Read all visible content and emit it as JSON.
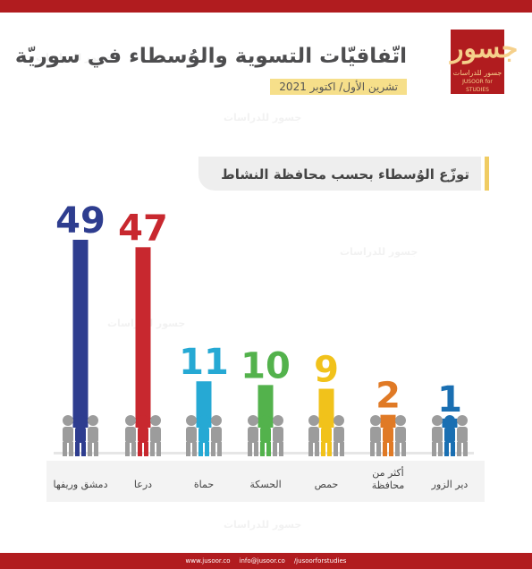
{
  "title": "اتّفاقيّات التسوية والوُسطاء في سوريّة",
  "date": "تشرين الأول/ اكتوبر 2021",
  "logo": {
    "mark": "جسور",
    "name_ar": "جسور للدراسات",
    "name_en": "JUSOOR for STUDIES"
  },
  "footer": {
    "website": "www.jusoor.co",
    "email": "info@jusoor.co",
    "social": "/jusoorforstudies"
  },
  "colors": {
    "brand": "#b11c1f",
    "gold": "#f0cc63",
    "badge": "#f6df8a"
  },
  "chart_data": {
    "type": "bar",
    "title": "توزّع الوُسطاء بحسب محافظة النشاط",
    "categories": [
      "دمشق وريفها",
      "درعا",
      "حماة",
      "الحسكة",
      "حمص",
      "أكثر من محافظة",
      "دير الزور"
    ],
    "values": [
      49,
      47,
      11,
      10,
      9,
      2,
      1
    ],
    "colors": [
      "#2e3d8f",
      "#c8282f",
      "#26a9d4",
      "#53b24c",
      "#f1c21b",
      "#e07a26",
      "#1a6fb2"
    ],
    "ylim": [
      0,
      49
    ],
    "grid": false,
    "legend": "none"
  }
}
